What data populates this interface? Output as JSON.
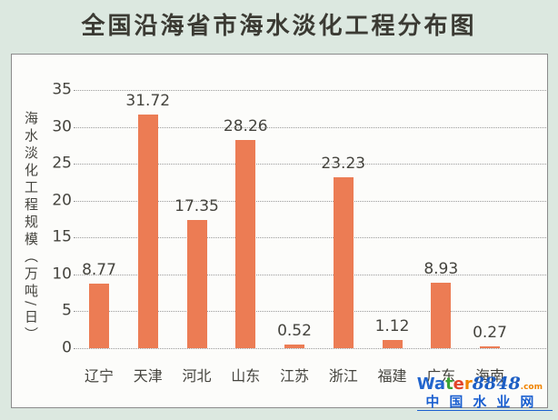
{
  "chart_data": {
    "type": "bar",
    "title": "全国沿海省市海水淡化工程分布图",
    "categories": [
      "辽宁",
      "天津",
      "河北",
      "山东",
      "江苏",
      "浙江",
      "福建",
      "广东",
      "海南"
    ],
    "values": [
      8.77,
      31.72,
      17.35,
      28.26,
      0.52,
      23.23,
      1.12,
      8.93,
      0.27
    ],
    "value_labels": [
      "8.77",
      "31.72",
      "17.35",
      "28.26",
      "0.52",
      "23.23",
      "1.12",
      "8.93",
      "0.27"
    ],
    "xlabel": "",
    "ylabel": "海水淡化工程规模（万吨/日）",
    "ylim": [
      0,
      35
    ],
    "yticks": [
      0,
      5,
      10,
      15,
      20,
      25,
      30,
      35
    ],
    "grid": true,
    "grid_style": "dotted",
    "legend": false,
    "bar_color": "#ec7c54"
  },
  "colors": {
    "background": "#dce8e0",
    "panel_background": "#fcfcfa",
    "panel_border": "#8b8b8b",
    "grid": "#9b9b9b",
    "title_text": "#3b3a33",
    "axis_text": "#45443e",
    "value_text": "#45443e"
  },
  "watermark": {
    "brand_segments": [
      {
        "text": "Wa",
        "color": "#2265cd",
        "style": "bold"
      },
      {
        "text": "t",
        "color": "#3aa335",
        "style": "bold"
      },
      {
        "text": "e",
        "color": "#e2442a",
        "style": "bold"
      },
      {
        "text": "r",
        "color": "#f08300",
        "style": "bold"
      },
      {
        "text": "8848",
        "color": "#1d5ec4",
        "style": "italic-serif"
      },
      {
        "text": ".com",
        "color": "#f08300",
        "style": "small"
      }
    ],
    "site_name": "中国水业网",
    "site_color": "#1a5fd0"
  }
}
